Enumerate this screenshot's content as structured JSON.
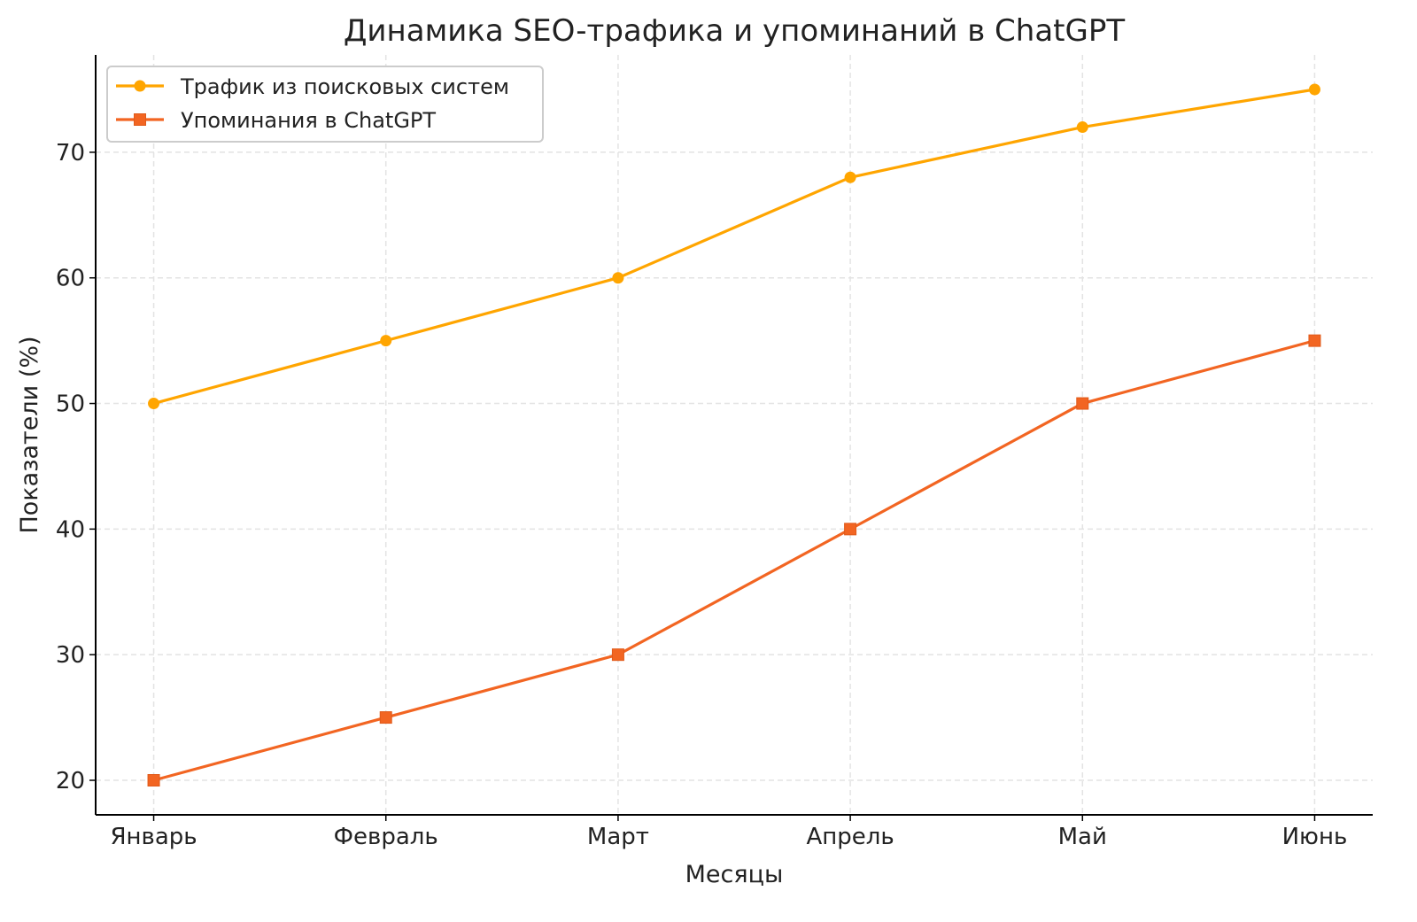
{
  "chart_data": {
    "type": "line",
    "title": "Динамика SEO-трафика и упоминаний в ChatGPT",
    "xlabel": "Месяцы",
    "ylabel": "Показатели (%)",
    "categories": [
      "Январь",
      "Февраль",
      "Март",
      "Апрель",
      "Май",
      "Июнь"
    ],
    "yticks": [
      20,
      30,
      40,
      50,
      60,
      70
    ],
    "ylim": [
      17.25,
      77.75
    ],
    "grid": true,
    "legend_position": "top-left",
    "series": [
      {
        "name": "Трафик из поисковых систем",
        "values": [
          50,
          55,
          60,
          68,
          72,
          75
        ],
        "color": "#FFA500",
        "marker": "circle"
      },
      {
        "name": "Упоминания в ChatGPT",
        "values": [
          20,
          25,
          30,
          40,
          50,
          55
        ],
        "color": "#F26522",
        "marker": "square"
      }
    ]
  }
}
